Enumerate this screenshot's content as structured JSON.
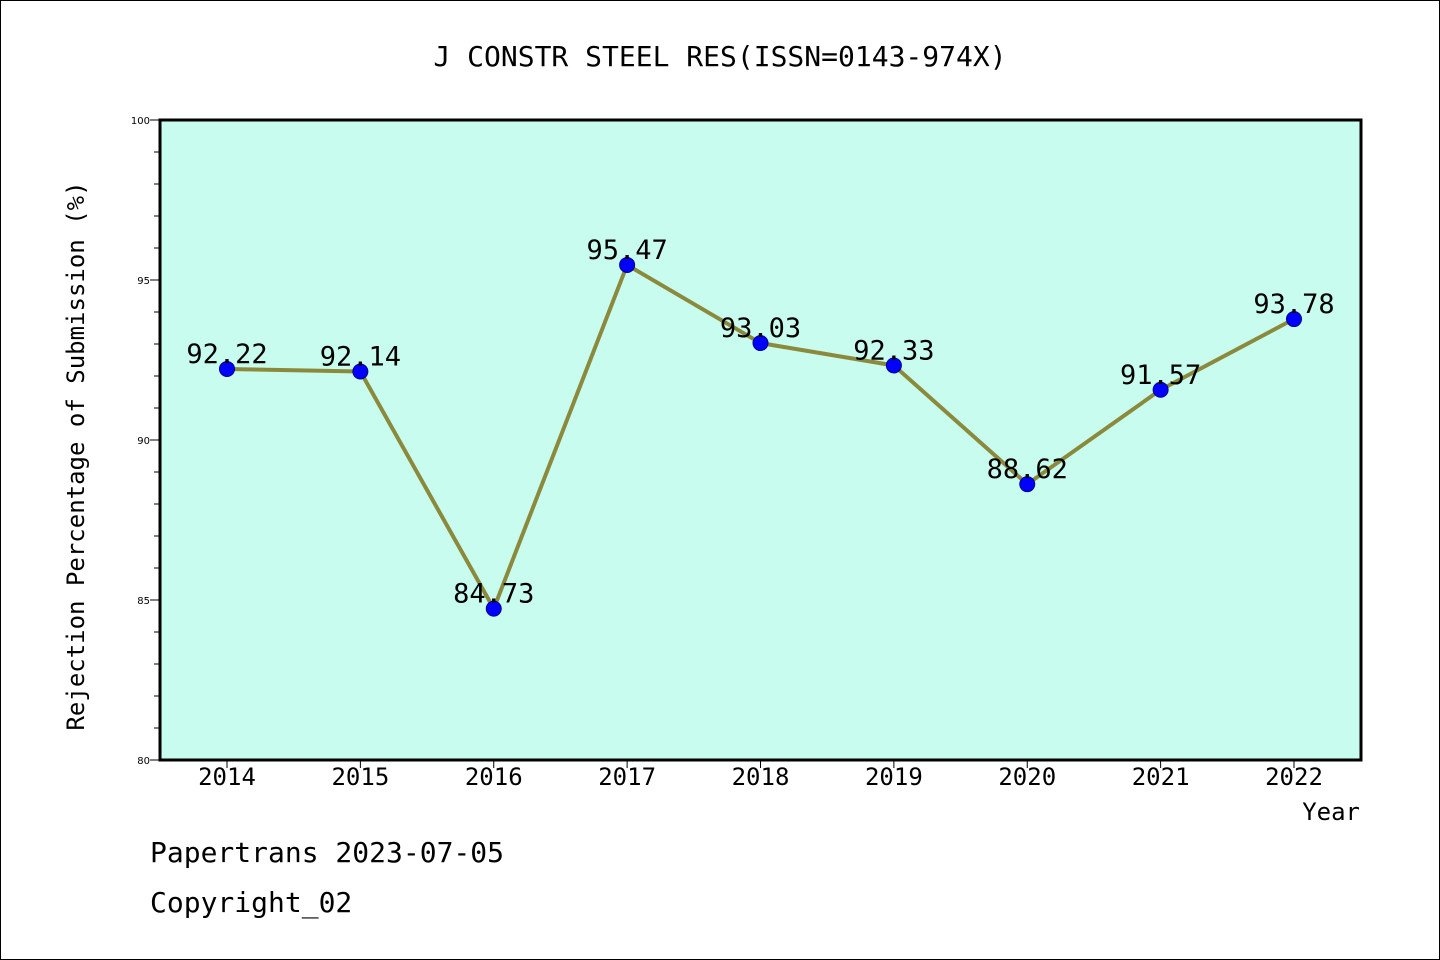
{
  "footer": {
    "line1": "Papertrans 2023-07-05",
    "line2": "Copyright_02"
  },
  "chart_data": {
    "type": "line",
    "title": "J CONSTR STEEL RES(ISSN=0143-974X)",
    "xlabel": "Year",
    "ylabel": "Rejection Percentage of Submission (%)",
    "categories": [
      "2014",
      "2015",
      "2016",
      "2017",
      "2018",
      "2019",
      "2020",
      "2021",
      "2022"
    ],
    "series": [
      {
        "values": [
          92.22,
          92.14,
          84.73,
          95.47,
          93.03,
          92.33,
          88.62,
          91.57,
          93.78
        ]
      }
    ],
    "value_labels": [
      "92.22",
      "92.14",
      "84.73",
      "95.47",
      "93.03",
      "92.33",
      "88.62",
      "91.57",
      "93.78"
    ],
    "ylim": [
      80,
      100
    ],
    "yticks": [
      80,
      85,
      90,
      95,
      100
    ],
    "grid": false,
    "colors": {
      "plot_background": "#c8fcee",
      "line": "#8b8a3c",
      "marker": "#0000ff",
      "axis": "#000000"
    }
  }
}
